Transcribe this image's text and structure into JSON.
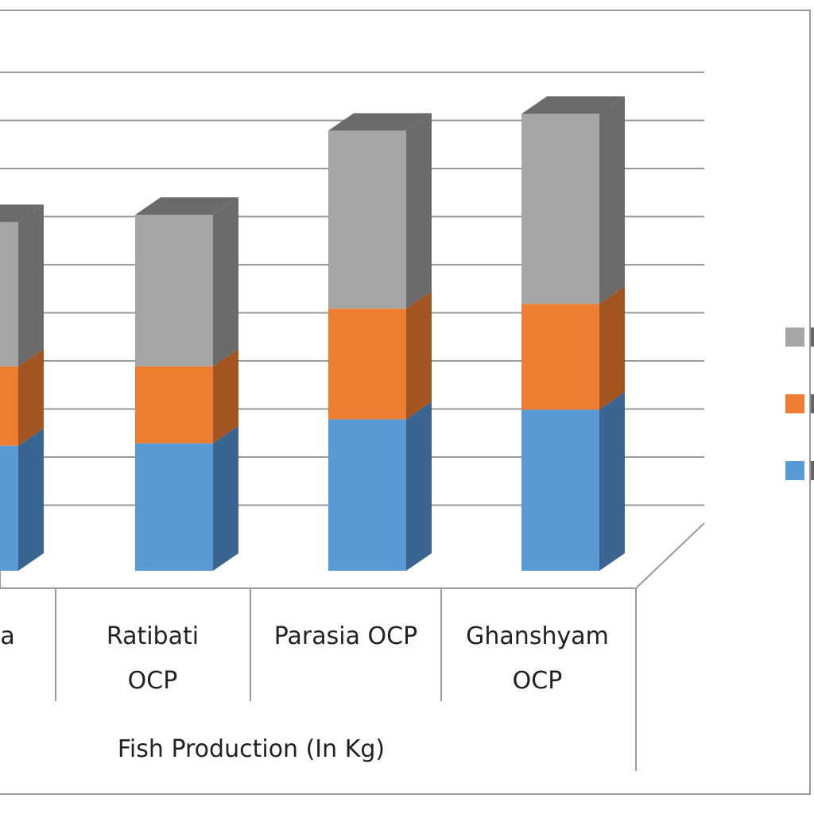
{
  "chart_data": {
    "type": "bar",
    "stacked": true,
    "three_d": true,
    "group_label": "Fish Production (In Kg)",
    "categories": [
      {
        "label_lines": [
          "ia"
        ]
      },
      {
        "label_lines": [
          "Ratibati",
          "OCP"
        ]
      },
      {
        "label_lines": [
          "Parasia OCP"
        ]
      },
      {
        "label_lines": [
          "Ghanshyam",
          "OCP"
        ]
      }
    ],
    "series": [
      {
        "color": "#5b9bd5",
        "side_color": "#3a6590",
        "values": [
          2.6,
          2.65,
          3.15,
          3.35
        ]
      },
      {
        "color": "#ed7d31",
        "side_color": "#a25421",
        "values": [
          1.65,
          1.6,
          2.3,
          2.2
        ]
      },
      {
        "color": "#a5a5a5",
        "side_color": "#6b6b6b",
        "values": [
          3.0,
          3.15,
          3.7,
          3.95
        ]
      }
    ],
    "ylim": [
      0,
      10
    ],
    "grid": true,
    "legend_position": "right"
  }
}
